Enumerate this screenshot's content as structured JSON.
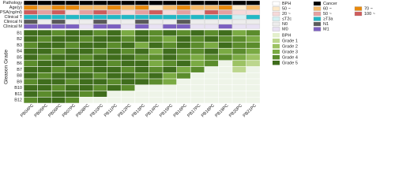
{
  "chart_data": {
    "type": "heatmap",
    "y_label": "Gleason Grade",
    "columns": [
      "PB04PC",
      "PB05PC",
      "PB06PC",
      "PB07PC",
      "PB08PC",
      "PB10PC",
      "PB11PC",
      "PB12PC",
      "PB13PC",
      "PB14PC",
      "PB15PC",
      "PB16PC",
      "PB17PC",
      "PB18PC",
      "PB19PC",
      "PB20PC",
      "PB21PC"
    ],
    "rows": [
      "B1",
      "B2",
      "B3",
      "B4",
      "B5",
      "B6",
      "B7",
      "B8",
      "B9",
      "B10",
      "B11",
      "B12"
    ],
    "annotations": [
      {
        "name": "Pathology",
        "levels": [
          "BPH",
          "Cancer"
        ],
        "colors": [
          "#ffffff",
          "#000000"
        ],
        "values": [
          1,
          1,
          1,
          1,
          1,
          1,
          1,
          1,
          1,
          1,
          1,
          1,
          1,
          1,
          1,
          1,
          1
        ]
      },
      {
        "name": "Age(y)",
        "levels": [
          "50 ~",
          "60 ~",
          "70 ~"
        ],
        "colors": [
          "#fde9c9",
          "#f7b966",
          "#e8890c"
        ],
        "values": [
          2,
          1,
          2,
          2,
          1,
          1,
          2,
          1,
          2,
          0,
          1,
          2,
          1,
          1,
          2,
          0,
          1
        ]
      },
      {
        "name": "PSA(ng/ml)",
        "levels": [
          "20 ~",
          "50 ~",
          "100 ~"
        ],
        "colors": [
          "#f6dada",
          "#e6a0a0",
          "#cf5c5c"
        ],
        "values": [
          2,
          1,
          2,
          0,
          1,
          2,
          1,
          0,
          1,
          2,
          0,
          1,
          0,
          2,
          1,
          0,
          0
        ]
      },
      {
        "name": "Clinical T",
        "levels": [
          "≤T2c",
          "≥T3a"
        ],
        "colors": [
          "#d3f0f2",
          "#22b8c5"
        ],
        "values": [
          1,
          1,
          1,
          1,
          1,
          1,
          1,
          1,
          1,
          1,
          1,
          1,
          1,
          1,
          1,
          0,
          1
        ]
      },
      {
        "name": "Clinical N",
        "levels": [
          "N0",
          "N1"
        ],
        "colors": [
          "#ededed",
          "#5a5a5a"
        ],
        "values": [
          1,
          0,
          1,
          0,
          0,
          1,
          0,
          0,
          1,
          0,
          0,
          1,
          0,
          0,
          0,
          0,
          0
        ]
      },
      {
        "name": "Clinical M",
        "levels": [
          "M0",
          "M1"
        ],
        "colors": [
          "#e8e1f3",
          "#7b5fc0"
        ],
        "values": [
          1,
          1,
          1,
          1,
          0,
          1,
          1,
          0,
          1,
          0,
          1,
          1,
          0,
          0,
          1,
          0,
          0
        ]
      }
    ],
    "grade_levels": [
      "BPH",
      "Grade 1",
      "Grade 2",
      "Grade 3",
      "Grade 4",
      "Grade 5"
    ],
    "grade_colors": [
      "#e3efcc",
      "#bcd68d",
      "#9cc263",
      "#7aaa43",
      "#5b8c2c",
      "#3f6d1c"
    ],
    "empty_color": "#eef4e8",
    "values": [
      [
        5,
        5,
        4,
        5,
        5,
        4,
        5,
        3,
        5,
        4,
        5,
        4,
        5,
        4,
        5,
        3,
        4
      ],
      [
        5,
        4,
        5,
        5,
        4,
        5,
        5,
        4,
        5,
        4,
        3,
        5,
        4,
        5,
        4,
        4,
        3
      ],
      [
        4,
        5,
        5,
        4,
        5,
        5,
        4,
        5,
        3,
        5,
        4,
        5,
        4,
        3,
        5,
        4,
        4
      ],
      [
        5,
        5,
        4,
        5,
        5,
        4,
        5,
        4,
        5,
        3,
        5,
        4,
        4,
        5,
        3,
        4,
        3
      ],
      [
        5,
        4,
        5,
        5,
        4,
        5,
        5,
        5,
        4,
        4,
        5,
        4,
        3,
        4,
        4,
        3,
        2
      ],
      [
        4,
        5,
        5,
        4,
        5,
        5,
        4,
        5,
        5,
        3,
        4,
        5,
        3,
        4,
        null,
        2,
        1
      ],
      [
        5,
        5,
        4,
        5,
        4,
        5,
        5,
        4,
        5,
        4,
        5,
        3,
        4,
        null,
        null,
        1,
        null
      ],
      [
        5,
        4,
        5,
        5,
        5,
        4,
        5,
        5,
        4,
        5,
        3,
        4,
        null,
        null,
        null,
        null,
        null
      ],
      [
        4,
        5,
        5,
        4,
        5,
        5,
        4,
        5,
        5,
        4,
        3,
        null,
        null,
        null,
        null,
        null,
        null
      ],
      [
        5,
        5,
        4,
        5,
        5,
        4,
        5,
        4,
        null,
        null,
        null,
        null,
        null,
        null,
        null,
        null,
        null
      ],
      [
        5,
        4,
        5,
        5,
        4,
        5,
        null,
        null,
        null,
        null,
        null,
        null,
        null,
        null,
        null,
        null,
        null
      ],
      [
        4,
        5,
        5,
        4,
        null,
        null,
        null,
        null,
        null,
        null,
        null,
        null,
        null,
        null,
        null,
        null,
        null
      ]
    ]
  }
}
